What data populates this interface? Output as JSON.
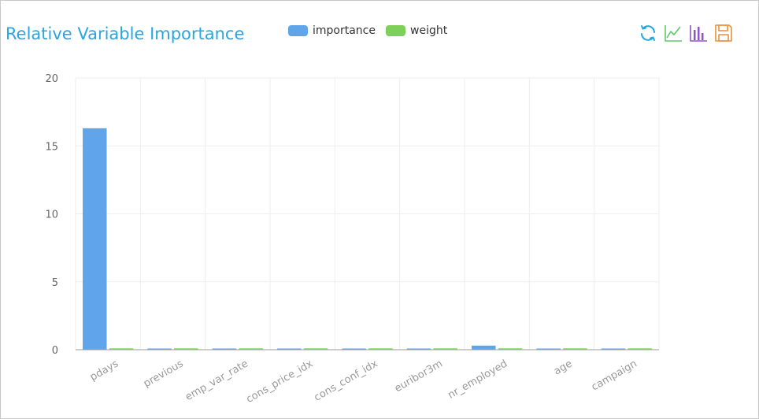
{
  "header": {
    "title": "Relative Variable Importance"
  },
  "toolbox": {
    "icons": [
      "refresh-icon",
      "line-chart-icon",
      "bar-chart-icon",
      "save-icon"
    ],
    "colors": {
      "refresh": "#27a6e1",
      "line": "#5ec96b",
      "bar": "#8e57c7",
      "save": "#e8913d"
    }
  },
  "colors": {
    "importance": "#60a4e9",
    "weight": "#7ed05b",
    "title": "#27a6e1"
  },
  "chart_data": {
    "type": "bar",
    "title": "Relative Variable Importance",
    "xlabel": "",
    "ylabel": "",
    "categories": [
      "pdays",
      "previous",
      "emp_var_rate",
      "cons_price_idx",
      "cons_conf_idx",
      "euribor3m",
      "nr_employed",
      "age",
      "campaign"
    ],
    "series": [
      {
        "name": "importance",
        "values": [
          16.3,
          0.08,
          0.08,
          0.08,
          0.08,
          0.08,
          0.3,
          0.08,
          0.08
        ]
      },
      {
        "name": "weight",
        "values": [
          0.1,
          0.1,
          0.1,
          0.1,
          0.1,
          0.1,
          0.1,
          0.1,
          0.1
        ]
      }
    ],
    "ylim": [
      0,
      20
    ],
    "yticks": [
      0,
      5,
      10,
      15,
      20
    ],
    "grid": true,
    "legend": "top-center"
  }
}
